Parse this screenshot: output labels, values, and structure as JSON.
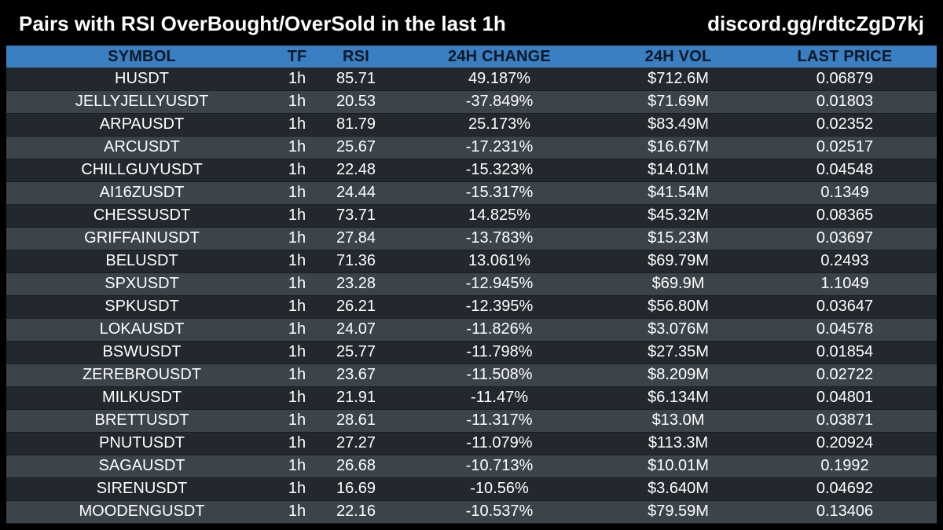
{
  "header": {
    "title": "Pairs with RSI OverBought/OverSold in the last 1h",
    "link": "discord.gg/rdtcZgD7kj"
  },
  "colors": {
    "background": "#000000",
    "header_row": "#3a7fc1",
    "header_text": "#0c1726",
    "row_dark": "#22282e",
    "row_light": "#3b434b",
    "text": "#ffffff"
  },
  "table": {
    "columns": [
      "SYMBOL",
      "TF",
      "RSI",
      "24H CHANGE",
      "24H VOL",
      "LAST PRICE"
    ],
    "rows": [
      {
        "symbol": "HUSDT",
        "tf": "1h",
        "rsi": "85.71",
        "change": "49.187%",
        "vol": "$712.6M",
        "price": "0.06879"
      },
      {
        "symbol": "JELLYJELLYUSDT",
        "tf": "1h",
        "rsi": "20.53",
        "change": "-37.849%",
        "vol": "$71.69M",
        "price": "0.01803"
      },
      {
        "symbol": "ARPAUSDT",
        "tf": "1h",
        "rsi": "81.79",
        "change": "25.173%",
        "vol": "$83.49M",
        "price": "0.02352"
      },
      {
        "symbol": "ARCUSDT",
        "tf": "1h",
        "rsi": "25.67",
        "change": "-17.231%",
        "vol": "$16.67M",
        "price": "0.02517"
      },
      {
        "symbol": "CHILLGUYUSDT",
        "tf": "1h",
        "rsi": "22.48",
        "change": "-15.323%",
        "vol": "$14.01M",
        "price": "0.04548"
      },
      {
        "symbol": "AI16ZUSDT",
        "tf": "1h",
        "rsi": "24.44",
        "change": "-15.317%",
        "vol": "$41.54M",
        "price": "0.1349"
      },
      {
        "symbol": "CHESSUSDT",
        "tf": "1h",
        "rsi": "73.71",
        "change": "14.825%",
        "vol": "$45.32M",
        "price": "0.08365"
      },
      {
        "symbol": "GRIFFAINUSDT",
        "tf": "1h",
        "rsi": "27.84",
        "change": "-13.783%",
        "vol": "$15.23M",
        "price": "0.03697"
      },
      {
        "symbol": "BELUSDT",
        "tf": "1h",
        "rsi": "71.36",
        "change": "13.061%",
        "vol": "$69.79M",
        "price": "0.2493"
      },
      {
        "symbol": "SPXUSDT",
        "tf": "1h",
        "rsi": "23.28",
        "change": "-12.945%",
        "vol": "$69.9M",
        "price": "1.1049"
      },
      {
        "symbol": "SPKUSDT",
        "tf": "1h",
        "rsi": "26.21",
        "change": "-12.395%",
        "vol": "$56.80M",
        "price": "0.03647"
      },
      {
        "symbol": "LOKAUSDT",
        "tf": "1h",
        "rsi": "24.07",
        "change": "-11.826%",
        "vol": "$3.076M",
        "price": "0.04578"
      },
      {
        "symbol": "BSWUSDT",
        "tf": "1h",
        "rsi": "25.77",
        "change": "-11.798%",
        "vol": "$27.35M",
        "price": "0.01854"
      },
      {
        "symbol": "ZEREBROUSDT",
        "tf": "1h",
        "rsi": "23.67",
        "change": "-11.508%",
        "vol": "$8.209M",
        "price": "0.02722"
      },
      {
        "symbol": "MILKUSDT",
        "tf": "1h",
        "rsi": "21.91",
        "change": "-11.47%",
        "vol": "$6.134M",
        "price": "0.04801"
      },
      {
        "symbol": "BRETTUSDT",
        "tf": "1h",
        "rsi": "28.61",
        "change": "-11.317%",
        "vol": "$13.0M",
        "price": "0.03871"
      },
      {
        "symbol": "PNUTUSDT",
        "tf": "1h",
        "rsi": "27.27",
        "change": "-11.079%",
        "vol": "$113.3M",
        "price": "0.20924"
      },
      {
        "symbol": "SAGAUSDT",
        "tf": "1h",
        "rsi": "26.68",
        "change": "-10.713%",
        "vol": "$10.01M",
        "price": "0.1992"
      },
      {
        "symbol": "SIRENUSDT",
        "tf": "1h",
        "rsi": "16.69",
        "change": "-10.56%",
        "vol": "$3.640M",
        "price": "0.04692"
      },
      {
        "symbol": "MOODENGUSDT",
        "tf": "1h",
        "rsi": "22.16",
        "change": "-10.537%",
        "vol": "$79.59M",
        "price": "0.13406"
      }
    ]
  }
}
